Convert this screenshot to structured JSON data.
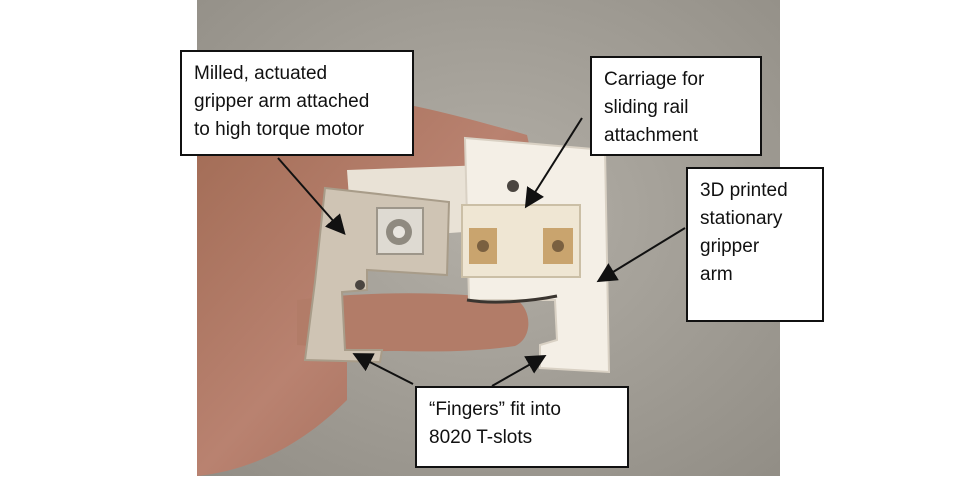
{
  "photo": {
    "subject": "gripper-assembly-held-in-hand"
  },
  "callouts": {
    "gripper_arm": "Milled, actuated\ngripper arm attached\nto high torque motor",
    "carriage": "Carriage for\nsliding rail\nattachment",
    "stationary_arm": "3D printed\nstationary\ngripper\narm",
    "fingers": "“Fingers” fit into\n8020 T-slots"
  },
  "colors": {
    "background": "#ffffff",
    "photo_floor": "#aaa79f",
    "skin": "#b07a63",
    "milled_arm": "#cfc4b4",
    "printed_part": "#f4efe6",
    "brass": "#c9a46e",
    "callout_border": "#111111"
  }
}
